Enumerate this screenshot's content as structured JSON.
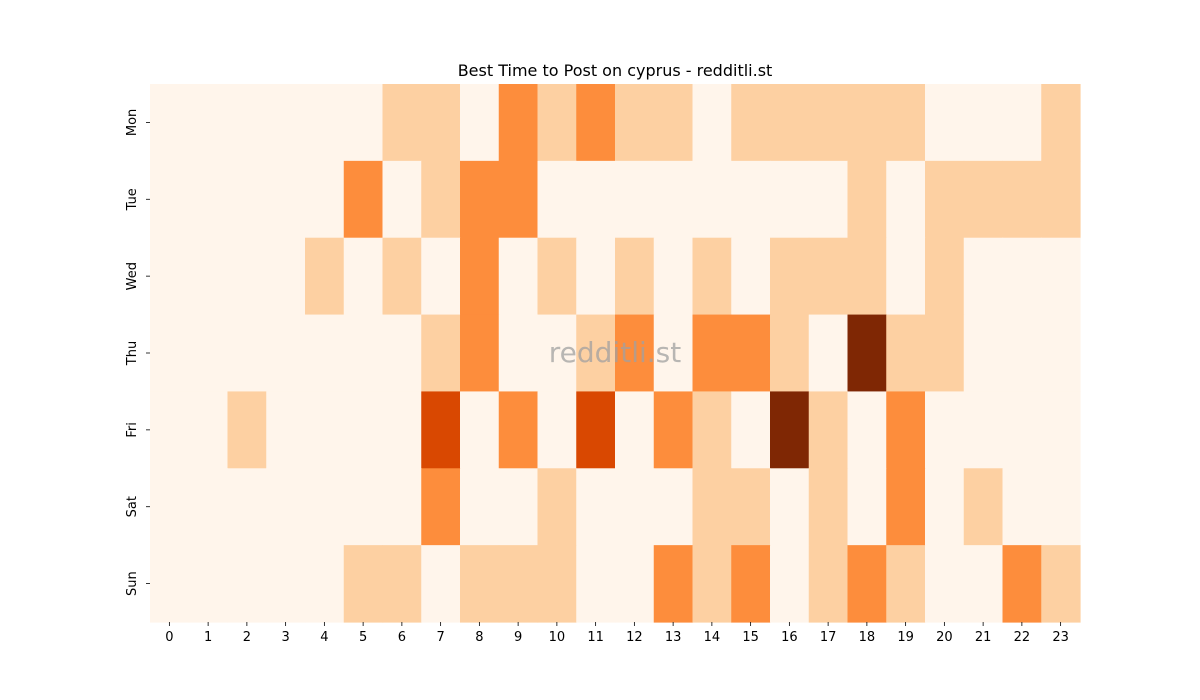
{
  "chart_data": {
    "type": "heatmap",
    "title": "Best Time to Post on cyprus - redditli.st",
    "xlabel": "",
    "ylabel": "",
    "x": [
      "0",
      "1",
      "2",
      "3",
      "4",
      "5",
      "6",
      "7",
      "8",
      "9",
      "10",
      "11",
      "12",
      "13",
      "14",
      "15",
      "16",
      "17",
      "18",
      "19",
      "20",
      "21",
      "22",
      "23"
    ],
    "y": [
      "Mon",
      "Tue",
      "Wed",
      "Thu",
      "Fri",
      "Sat",
      "Sun"
    ],
    "values": [
      [
        0,
        0,
        0,
        0,
        0,
        0,
        1,
        1,
        0,
        2,
        1,
        2,
        1,
        1,
        0,
        1,
        1,
        1,
        1,
        1,
        0,
        0,
        0,
        1
      ],
      [
        0,
        0,
        0,
        0,
        0,
        2,
        0,
        1,
        2,
        2,
        0,
        0,
        0,
        0,
        0,
        0,
        0,
        0,
        1,
        0,
        1,
        1,
        1,
        1
      ],
      [
        0,
        0,
        0,
        0,
        1,
        0,
        1,
        0,
        2,
        0,
        1,
        0,
        1,
        0,
        1,
        0,
        1,
        1,
        1,
        0,
        1,
        0,
        0,
        0
      ],
      [
        0,
        0,
        0,
        0,
        0,
        0,
        0,
        1,
        2,
        0,
        0,
        1,
        2,
        0,
        2,
        2,
        1,
        0,
        4,
        1,
        1,
        0,
        0,
        0
      ],
      [
        0,
        0,
        1,
        0,
        0,
        0,
        0,
        3,
        0,
        2,
        0,
        3,
        0,
        2,
        1,
        0,
        4,
        1,
        0,
        2,
        0,
        0,
        0,
        0
      ],
      [
        0,
        0,
        0,
        0,
        0,
        0,
        0,
        2,
        0,
        0,
        1,
        0,
        0,
        0,
        1,
        1,
        0,
        1,
        0,
        2,
        0,
        1,
        0,
        0
      ],
      [
        0,
        0,
        0,
        0,
        0,
        1,
        1,
        0,
        1,
        1,
        1,
        0,
        0,
        2,
        1,
        2,
        0,
        1,
        2,
        1,
        0,
        0,
        2,
        1
      ]
    ],
    "colormap": [
      "#fff5eb",
      "#fdd0a2",
      "#fd8d3c",
      "#d94801",
      "#7f2704"
    ],
    "watermark": "redditli.st"
  }
}
